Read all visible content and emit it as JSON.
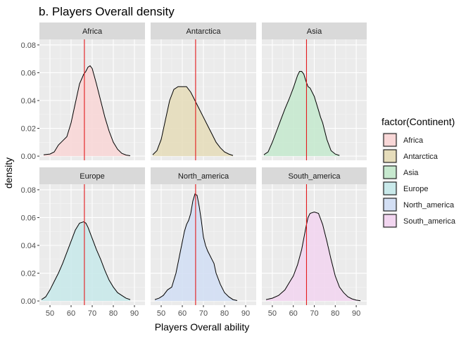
{
  "chart_data": {
    "type": "area",
    "title": "b. Players Overall density",
    "xlabel": "Players Overall ability",
    "ylabel": "density",
    "xlim": [
      45,
      95
    ],
    "ylim": [
      -0.003,
      0.084
    ],
    "x_ticks": [
      50,
      60,
      70,
      80,
      90
    ],
    "y_ticks": [
      0.0,
      0.02,
      0.04,
      0.06,
      0.08
    ],
    "y_tick_labels": [
      "0.00",
      "0.02",
      "0.04",
      "0.06",
      "0.08"
    ],
    "grid": true,
    "reference_line": {
      "x": 66.3,
      "color": "#e41a1c"
    },
    "legend": {
      "title": "factor(Continent)",
      "position": "right",
      "entries": [
        "Africa",
        "Antarctica",
        "Asia",
        "Europe",
        "North_america",
        "South_america"
      ]
    },
    "facets": [
      {
        "name": "Africa",
        "fill": "#f8d7d7",
        "points": [
          [
            47,
            0.001
          ],
          [
            50,
            0.0015
          ],
          [
            52,
            0.003
          ],
          [
            54,
            0.008
          ],
          [
            56,
            0.011
          ],
          [
            58,
            0.014
          ],
          [
            60,
            0.024
          ],
          [
            62,
            0.038
          ],
          [
            64,
            0.052
          ],
          [
            66,
            0.059
          ],
          [
            67,
            0.061
          ],
          [
            68,
            0.064
          ],
          [
            69,
            0.065
          ],
          [
            70,
            0.063
          ],
          [
            72,
            0.052
          ],
          [
            74,
            0.04
          ],
          [
            76,
            0.028
          ],
          [
            78,
            0.018
          ],
          [
            80,
            0.01
          ],
          [
            82,
            0.005
          ],
          [
            84,
            0.002
          ],
          [
            86,
            0.0008
          ],
          [
            88,
            0.0003
          ]
        ]
      },
      {
        "name": "Antarctica",
        "fill": "#e6ddbb",
        "points": [
          [
            46,
            0.001
          ],
          [
            48,
            0.004
          ],
          [
            50,
            0.012
          ],
          [
            52,
            0.026
          ],
          [
            54,
            0.04
          ],
          [
            56,
            0.048
          ],
          [
            58,
            0.05
          ],
          [
            60,
            0.05
          ],
          [
            62,
            0.05
          ],
          [
            64,
            0.046
          ],
          [
            66,
            0.04
          ],
          [
            68,
            0.034
          ],
          [
            70,
            0.028
          ],
          [
            72,
            0.022
          ],
          [
            74,
            0.016
          ],
          [
            76,
            0.01
          ],
          [
            78,
            0.006
          ],
          [
            80,
            0.003
          ],
          [
            82,
            0.0015
          ],
          [
            84,
            0.0005
          ]
        ]
      },
      {
        "name": "Asia",
        "fill": "#c7e9cf",
        "points": [
          [
            46,
            0.001
          ],
          [
            48,
            0.003
          ],
          [
            50,
            0.01
          ],
          [
            52,
            0.018
          ],
          [
            54,
            0.026
          ],
          [
            56,
            0.034
          ],
          [
            58,
            0.041
          ],
          [
            60,
            0.049
          ],
          [
            62,
            0.058
          ],
          [
            63,
            0.061
          ],
          [
            64,
            0.061
          ],
          [
            65,
            0.059
          ],
          [
            66,
            0.054
          ],
          [
            67,
            0.05
          ],
          [
            68,
            0.049
          ],
          [
            70,
            0.043
          ],
          [
            72,
            0.033
          ],
          [
            73,
            0.028
          ],
          [
            74,
            0.024
          ],
          [
            76,
            0.012
          ],
          [
            78,
            0.004
          ],
          [
            80,
            0.0015
          ],
          [
            82,
            0.0005
          ]
        ]
      },
      {
        "name": "Europe",
        "fill": "#c9e9ea",
        "points": [
          [
            46,
            0.001
          ],
          [
            48,
            0.003
          ],
          [
            50,
            0.008
          ],
          [
            52,
            0.014
          ],
          [
            54,
            0.02
          ],
          [
            56,
            0.027
          ],
          [
            58,
            0.035
          ],
          [
            60,
            0.043
          ],
          [
            62,
            0.051
          ],
          [
            64,
            0.056
          ],
          [
            66,
            0.057
          ],
          [
            67,
            0.056
          ],
          [
            68,
            0.053
          ],
          [
            70,
            0.045
          ],
          [
            72,
            0.037
          ],
          [
            74,
            0.03
          ],
          [
            76,
            0.022
          ],
          [
            78,
            0.015
          ],
          [
            80,
            0.01
          ],
          [
            82,
            0.006
          ],
          [
            84,
            0.004
          ],
          [
            86,
            0.002
          ],
          [
            88,
            0.001
          ]
        ]
      },
      {
        "name": "North_america",
        "fill": "#d3dff4",
        "points": [
          [
            47,
            0.001
          ],
          [
            49,
            0.002
          ],
          [
            51,
            0.004
          ],
          [
            53,
            0.008
          ],
          [
            55,
            0.01
          ],
          [
            57,
            0.02
          ],
          [
            59,
            0.035
          ],
          [
            61,
            0.05
          ],
          [
            62,
            0.055
          ],
          [
            63,
            0.058
          ],
          [
            64,
            0.063
          ],
          [
            65,
            0.072
          ],
          [
            66,
            0.077
          ],
          [
            67,
            0.076
          ],
          [
            68,
            0.068
          ],
          [
            69,
            0.058
          ],
          [
            70,
            0.046
          ],
          [
            71,
            0.04
          ],
          [
            72,
            0.036
          ],
          [
            74,
            0.03
          ],
          [
            75,
            0.027
          ],
          [
            76,
            0.02
          ],
          [
            78,
            0.012
          ],
          [
            80,
            0.006
          ],
          [
            82,
            0.003
          ],
          [
            84,
            0.001
          ],
          [
            86,
            0.0003
          ]
        ]
      },
      {
        "name": "South_america",
        "fill": "#f2d6f0",
        "points": [
          [
            47,
            0.001
          ],
          [
            50,
            0.002
          ],
          [
            53,
            0.004
          ],
          [
            56,
            0.008
          ],
          [
            58,
            0.013
          ],
          [
            60,
            0.018
          ],
          [
            62,
            0.026
          ],
          [
            64,
            0.037
          ],
          [
            66,
            0.053
          ],
          [
            67,
            0.06
          ],
          [
            68,
            0.063
          ],
          [
            70,
            0.064
          ],
          [
            72,
            0.063
          ],
          [
            74,
            0.055
          ],
          [
            76,
            0.043
          ],
          [
            78,
            0.03
          ],
          [
            80,
            0.018
          ],
          [
            82,
            0.01
          ],
          [
            84,
            0.006
          ],
          [
            86,
            0.003
          ],
          [
            88,
            0.0015
          ],
          [
            90,
            0.0006
          ],
          [
            92,
            0.0002
          ]
        ]
      }
    ]
  }
}
